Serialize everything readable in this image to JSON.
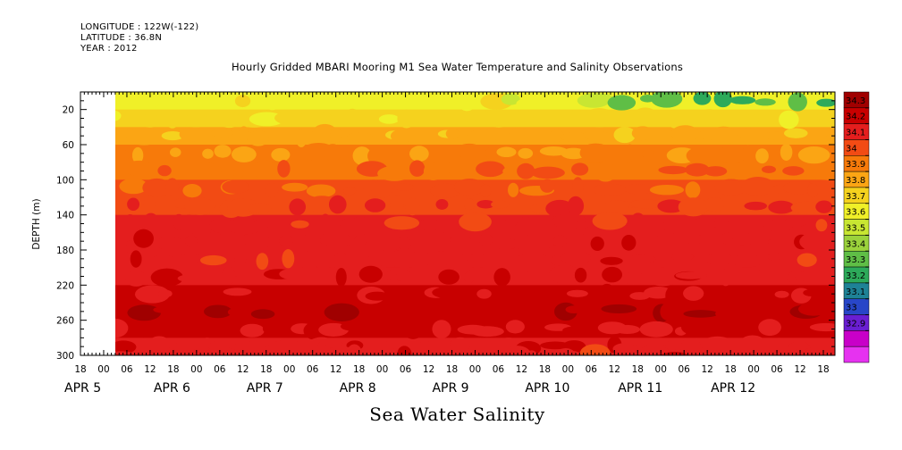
{
  "header": {
    "longitude": "LONGITUDE : 122W(-122)",
    "latitude": "LATITUDE : 36.8N",
    "year": "YEAR : 2012"
  },
  "title": "Hourly Gridded MBARI Mooring M1 Sea Water Temperature and Salinity Observations",
  "variable_label": "Sea Water Salinity",
  "chart_data": {
    "type": "heatmap",
    "title": "Hourly Gridded MBARI Mooring M1 Sea Water Temperature and Salinity Observations",
    "xlabel": "Sea Water Salinity",
    "ylabel": "DEPTH (m)",
    "x_range": [
      "2012-04-04T18:00",
      "2012-04-12T21:00"
    ],
    "data_start": "2012-04-05T02:00",
    "y_range": [
      0,
      300
    ],
    "y_inverted": true,
    "y_ticks": [
      20,
      60,
      100,
      140,
      180,
      220,
      260,
      300
    ],
    "x_hour_ticks": [
      "18",
      "00",
      "06",
      "12",
      "18",
      "00",
      "06",
      "12",
      "18",
      "00",
      "06",
      "12",
      "18",
      "00",
      "06",
      "12",
      "18",
      "00",
      "06",
      "12",
      "18",
      "00",
      "06",
      "12",
      "18",
      "00",
      "06",
      "12",
      "18",
      "00",
      "06",
      "12",
      "18"
    ],
    "x_day_labels": [
      "APR 5",
      "APR 6",
      "APR 7",
      "APR 8",
      "APR 9",
      "APR 10",
      "APR 11",
      "APR 12"
    ],
    "depths": [
      10,
      30,
      50,
      70,
      90,
      110,
      130,
      150,
      170,
      190,
      210,
      230,
      250,
      270,
      290,
      300
    ],
    "mean_profile": [
      33.65,
      33.72,
      33.84,
      33.92,
      33.98,
      34.03,
      34.09,
      34.14,
      34.15,
      34.14,
      34.17,
      34.21,
      34.26,
      34.2,
      34.16,
      34.15
    ],
    "colorbar": {
      "levels": [
        "34.3",
        "34.2",
        "34.1",
        "34",
        "33.9",
        "33.8",
        "33.7",
        "33.6",
        "33.5",
        "33.4",
        "33.3",
        "33.2",
        "33.1",
        "33",
        "32.9"
      ],
      "colors": [
        "#a00000",
        "#c80000",
        "#e41e1e",
        "#f24b14",
        "#f77a0a",
        "#fba514",
        "#f5d21e",
        "#f0f028",
        "#c8e632",
        "#9bd23c",
        "#5fbe46",
        "#2daa5a",
        "#1e8296",
        "#2846c8",
        "#6a1ed2",
        "#c800c8",
        "#e632f0"
      ]
    }
  }
}
